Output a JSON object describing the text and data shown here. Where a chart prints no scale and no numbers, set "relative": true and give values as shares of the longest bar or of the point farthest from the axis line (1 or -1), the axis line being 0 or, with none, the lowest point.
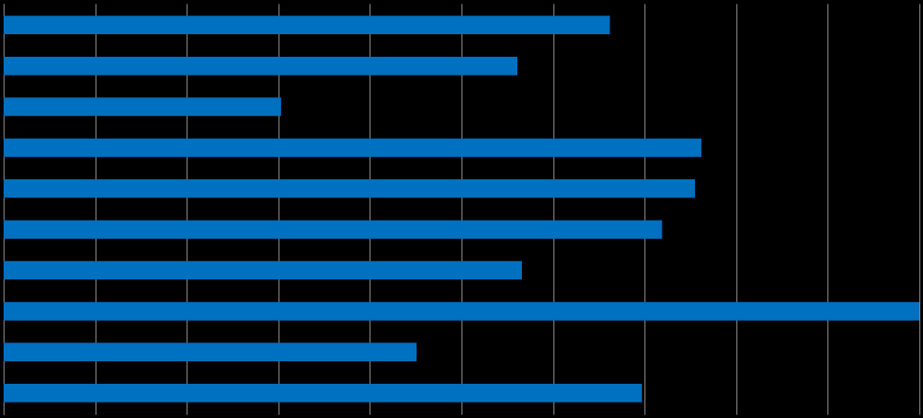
{
  "chart_data": {
    "type": "bar",
    "orientation": "horizontal",
    "relative": true,
    "grid": "x",
    "categories": [
      null,
      null,
      null,
      null,
      null,
      null,
      null,
      null,
      null,
      null
    ],
    "series": [
      {
        "color": "#0070c0",
        "values": [
          0.662,
          0.561,
          0.303,
          0.762,
          0.755,
          0.719,
          0.566,
          1,
          0.451,
          0.697
        ]
      }
    ]
  }
}
